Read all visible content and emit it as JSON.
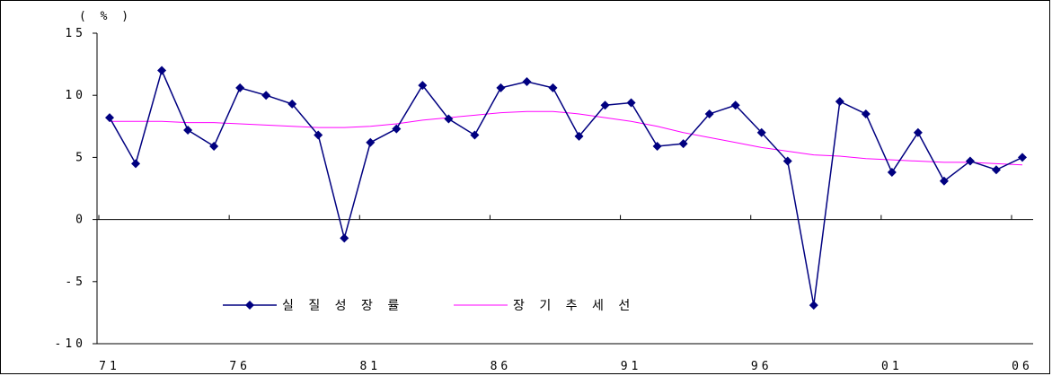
{
  "chart_data": {
    "type": "line",
    "unit_label": "( % )",
    "x": [
      1971,
      1972,
      1973,
      1974,
      1975,
      1976,
      1977,
      1978,
      1979,
      1980,
      1981,
      1982,
      1983,
      1984,
      1985,
      1986,
      1987,
      1988,
      1989,
      1990,
      1991,
      1992,
      1993,
      1994,
      1995,
      1996,
      1997,
      1998,
      1999,
      2000,
      2001,
      2002,
      2003,
      2004,
      2005,
      2006
    ],
    "x_tick_labels": [
      {
        "year": 1971,
        "label": "71"
      },
      {
        "year": 1976,
        "label": "76"
      },
      {
        "year": 1981,
        "label": "81"
      },
      {
        "year": 1986,
        "label": "86"
      },
      {
        "year": 1991,
        "label": "91"
      },
      {
        "year": 1996,
        "label": "96"
      },
      {
        "year": 2001,
        "label": "01"
      },
      {
        "year": 2006,
        "label": "06"
      }
    ],
    "y_ticks": [
      15,
      10,
      5,
      0,
      -5,
      -10
    ],
    "y_tick_labels": [
      "15",
      "10",
      "5",
      "0",
      "-5",
      "-10"
    ],
    "ylim": [
      -10,
      15
    ],
    "series": [
      {
        "name": "실질 성장률",
        "color": "#000080",
        "marker": "diamond",
        "values": [
          8.2,
          4.5,
          12.0,
          7.2,
          5.9,
          10.6,
          10.0,
          9.3,
          6.8,
          -1.5,
          6.2,
          7.3,
          10.8,
          8.1,
          6.8,
          10.6,
          11.1,
          10.6,
          6.7,
          9.2,
          9.4,
          5.9,
          6.1,
          8.5,
          9.2,
          7.0,
          4.7,
          -6.9,
          9.5,
          8.5,
          3.8,
          7.0,
          3.1,
          4.7,
          4.0,
          5.0
        ]
      },
      {
        "name": "장기추세선",
        "color": "#ff00ff",
        "marker": "none",
        "values": [
          7.9,
          7.9,
          7.9,
          7.8,
          7.8,
          7.7,
          7.6,
          7.5,
          7.4,
          7.4,
          7.5,
          7.7,
          8.0,
          8.2,
          8.4,
          8.6,
          8.7,
          8.7,
          8.5,
          8.2,
          7.9,
          7.5,
          7.0,
          6.6,
          6.2,
          5.8,
          5.5,
          5.2,
          5.1,
          4.9,
          4.8,
          4.7,
          4.6,
          4.6,
          4.5,
          4.4
        ]
      }
    ],
    "legend": {
      "placement": "bottom-center",
      "labels": [
        "실 질  성 장 률",
        "장 기 추 세 선"
      ]
    },
    "grid": false
  }
}
